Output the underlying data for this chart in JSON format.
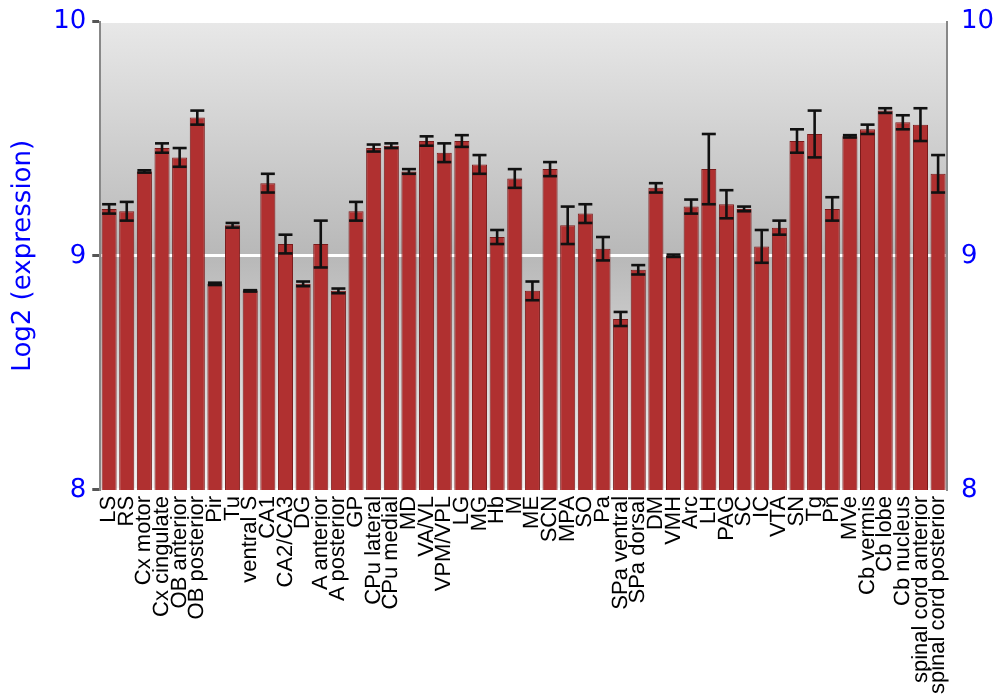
{
  "chart_data": {
    "type": "bar",
    "ylabel": "Log2 (expression)",
    "categories": [
      "LS",
      "RS",
      "Cx motor",
      "Cx cingulate",
      "OB anterior",
      "OB posterior",
      "Pir",
      "Tu",
      "ventral S",
      "CA1",
      "CA2/CA3",
      "DG",
      "A anterior",
      "A posterior",
      "GP",
      "CPu lateral",
      "CPu medial",
      "MD",
      "VA/VL",
      "VPM/VPL",
      "LG",
      "MG",
      "Hb",
      "M",
      "ME",
      "SCN",
      "MPA",
      "SO",
      "Pa",
      "SPa ventral",
      "SPa dorsal",
      "DM",
      "VMH",
      "Arc",
      "LH",
      "PAG",
      "SC",
      "IC",
      "VTA",
      "SN",
      "Tg",
      "Pn",
      "MVe",
      "Cb vermis",
      "Cb lobe",
      "Cb nucleus",
      "spinal cord anterior",
      "spinal cord posterior"
    ],
    "values": [
      9.2,
      9.19,
      9.36,
      9.46,
      9.42,
      9.59,
      8.88,
      9.13,
      8.85,
      9.31,
      9.05,
      8.88,
      9.05,
      8.85,
      9.19,
      9.46,
      9.47,
      9.36,
      9.49,
      9.44,
      9.49,
      9.39,
      9.08,
      9.33,
      8.85,
      9.37,
      9.13,
      9.18,
      9.03,
      8.73,
      8.94,
      9.29,
      9.0,
      9.21,
      9.37,
      9.22,
      9.2,
      9.04,
      9.12,
      9.49,
      9.52,
      9.2,
      9.51,
      9.54,
      9.62,
      9.57,
      9.56,
      9.35
    ],
    "errors": [
      0.02,
      0.04,
      0.005,
      0.02,
      0.04,
      0.03,
      0.005,
      0.01,
      0.003,
      0.04,
      0.04,
      0.01,
      0.1,
      0.01,
      0.04,
      0.015,
      0.01,
      0.01,
      0.02,
      0.04,
      0.025,
      0.04,
      0.03,
      0.04,
      0.04,
      0.03,
      0.08,
      0.04,
      0.05,
      0.03,
      0.02,
      0.02,
      0.005,
      0.03,
      0.15,
      0.06,
      0.01,
      0.07,
      0.03,
      0.05,
      0.1,
      0.05,
      0.005,
      0.02,
      0.01,
      0.03,
      0.07,
      0.08
    ],
    "color": "#b03030",
    "ylim": [
      8,
      10
    ],
    "yticks": [
      8,
      9,
      10
    ],
    "y2lim": [
      8,
      10
    ],
    "y2ticks": [
      8,
      9,
      10
    ],
    "grid": "y",
    "legend": false
  }
}
